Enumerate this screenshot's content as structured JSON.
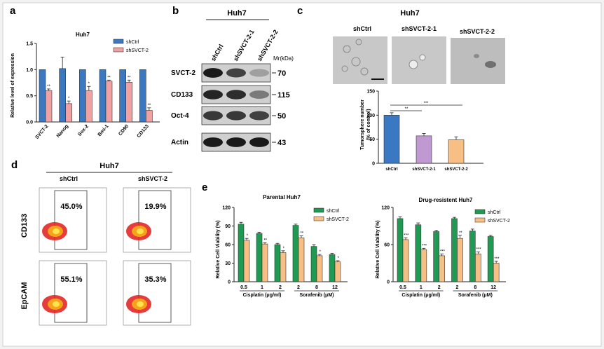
{
  "panels": {
    "a": {
      "label": "a",
      "title": "Huh7",
      "ylabel": "Relative level of expression",
      "legend": [
        "shCtrl",
        "shSVCT-2"
      ],
      "stars": [
        "**",
        "*",
        "*",
        "**",
        "**",
        "**"
      ]
    },
    "b": {
      "label": "b",
      "title": "Huh7",
      "lanes": [
        "shCtrl",
        "shSVCT-2-1",
        "shSVCT-2-2"
      ],
      "mw_header": "Mr(kDa)",
      "rows": [
        {
          "name": "SVCT-2",
          "mw": "70"
        },
        {
          "name": "CD133",
          "mw": "115"
        },
        {
          "name": "Oct-4",
          "mw": "50"
        },
        {
          "name": "Actin",
          "mw": "43"
        }
      ]
    },
    "c": {
      "label": "c",
      "title": "Huh7",
      "images": [
        "shCtrl",
        "shSVCT-2-1",
        "shSVCT-2-2"
      ],
      "ylabel1": "Tumorsphere number",
      "ylabel2": "(% of control)",
      "sig": [
        "**",
        "***"
      ]
    },
    "d": {
      "label": "d",
      "title": "Huh7",
      "cols": [
        "shCtrl",
        "shSVCT-2"
      ],
      "rows": [
        "CD133",
        "EpCAM"
      ],
      "percents": [
        [
          "45.0%",
          "19.9%"
        ],
        [
          "55.1%",
          "35.3%"
        ]
      ]
    },
    "e": {
      "label": "e",
      "titles": [
        "Parental Huh7",
        "Drug-resistent Huh7"
      ],
      "ylabel": "Relative Cell Viability (%)",
      "legend": [
        "shCtrl",
        "shSVCT-2"
      ],
      "groups": [
        "Cisplatin (μg/ml)",
        "Sorafenib (μM)"
      ],
      "stars_parental": [
        "*",
        "**",
        "*",
        "**",
        "*",
        "*"
      ],
      "stars_resistant": [
        "***",
        "***",
        "***",
        "**",
        "***",
        "***"
      ]
    }
  },
  "colors": {
    "blue": "#3a78c2",
    "pink": "#f0a2a2",
    "green": "#1f9a52",
    "orange": "#f7bf84",
    "purple": "#c199d2"
  },
  "chart_data": [
    {
      "type": "bar",
      "categories": [
        "SVCT-2",
        "Nanog",
        "Sox-2",
        "Bmi-1",
        "CD90",
        "CD133"
      ],
      "series": [
        {
          "name": "shCtrl",
          "values": [
            1.0,
            1.02,
            1.0,
            1.0,
            1.0,
            1.0
          ],
          "errors": [
            0.0,
            0.22,
            0.0,
            0.0,
            0.0,
            0.0
          ]
        },
        {
          "name": "shSVCT-2",
          "values": [
            0.6,
            0.35,
            0.6,
            0.78,
            0.76,
            0.22
          ],
          "errors": [
            0.03,
            0.05,
            0.08,
            0.02,
            0.04,
            0.05
          ]
        }
      ],
      "ylim": [
        0,
        1.5
      ],
      "yticks": [
        "0.0",
        "0.5",
        "1.0",
        "1.5"
      ]
    },
    {
      "type": "bar",
      "categories": [
        "shCtrl",
        "shSVCT-2-1",
        "shSVCT-2-2"
      ],
      "values": [
        100,
        57,
        49
      ],
      "errors": [
        5,
        5,
        6
      ],
      "ylim": [
        0,
        150
      ],
      "yticks": [
        "0",
        "50",
        "100",
        "150"
      ]
    },
    {
      "type": "bar",
      "categories": [
        "0.5",
        "1",
        "2",
        "2",
        "8",
        "12"
      ],
      "series": [
        {
          "name": "shCtrl",
          "values": [
            93,
            78,
            60,
            91,
            57,
            44
          ],
          "errors": [
            3,
            2,
            2,
            2,
            3,
            2
          ]
        },
        {
          "name": "shSVCT-2",
          "values": [
            67,
            61,
            47,
            71,
            42,
            32
          ],
          "errors": [
            3,
            2,
            3,
            3,
            2,
            2
          ]
        }
      ],
      "ylim": [
        0,
        120
      ],
      "yticks": [
        "0",
        "30",
        "60",
        "90",
        "120"
      ]
    },
    {
      "type": "bar",
      "categories": [
        "0.5",
        "1",
        "2",
        "2",
        "8",
        "12"
      ],
      "series": [
        {
          "name": "shCtrl",
          "values": [
            102,
            92,
            81,
            102,
            82,
            73
          ],
          "errors": [
            3,
            3,
            2,
            2,
            3,
            2
          ]
        },
        {
          "name": "shSVCT-2",
          "values": [
            68,
            52,
            42,
            70,
            45,
            30
          ],
          "errors": [
            3,
            2,
            3,
            5,
            3,
            3
          ]
        }
      ],
      "ylim": [
        0,
        120
      ],
      "yticks": [
        "0",
        "60",
        "120"
      ]
    }
  ]
}
